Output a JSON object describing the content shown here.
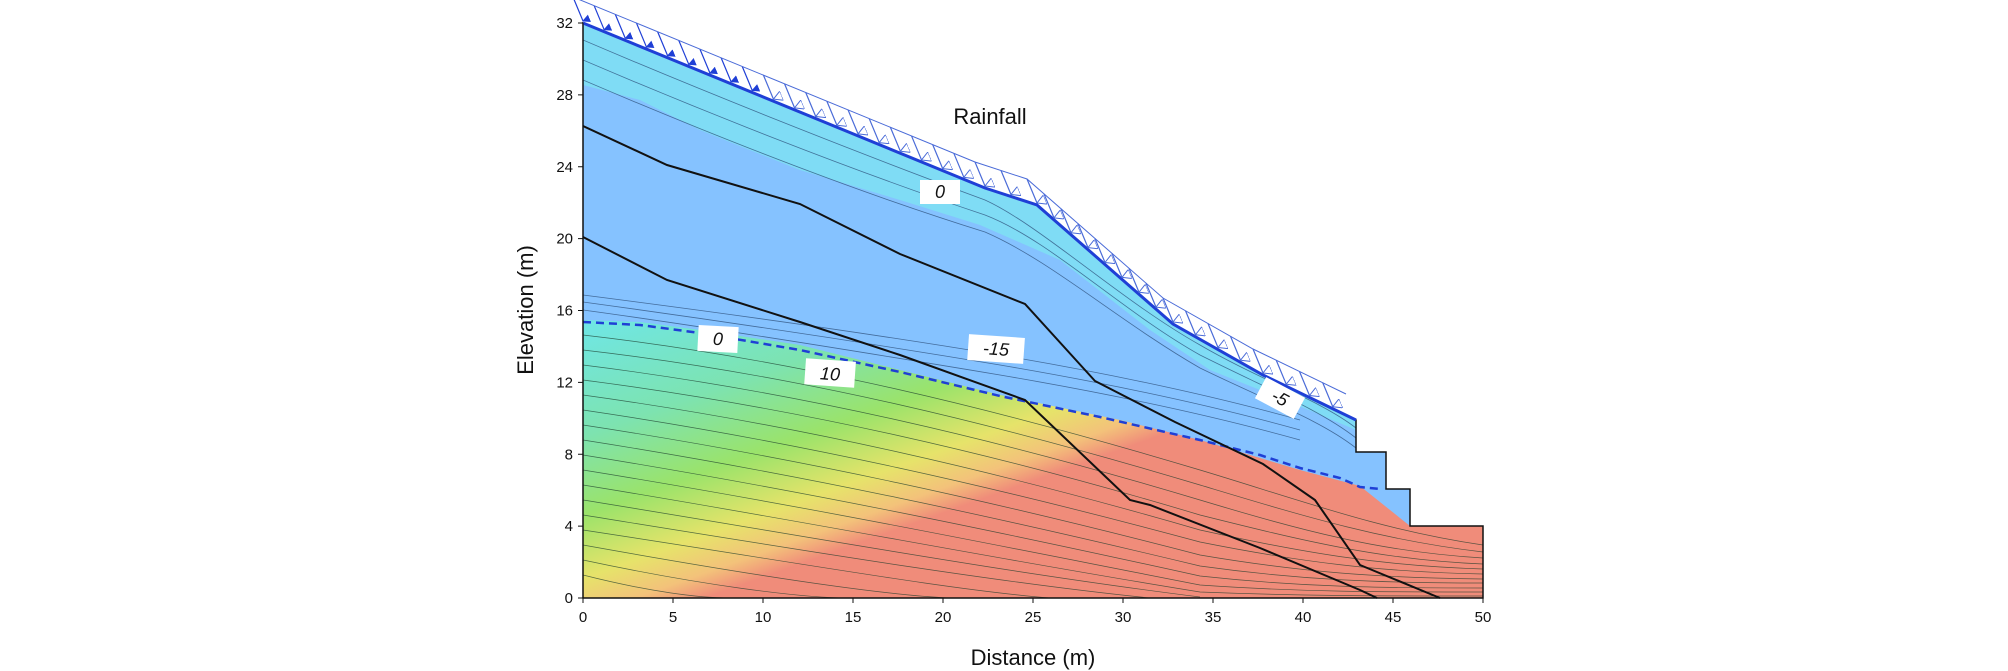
{
  "axes": {
    "x_label": "Distance (m)",
    "y_label": "Elevation (m)",
    "x_ticks": [
      "0",
      "5",
      "10",
      "15",
      "20",
      "25",
      "30",
      "35",
      "40",
      "45",
      "50"
    ],
    "y_ticks": [
      "0",
      "4",
      "8",
      "12",
      "16",
      "20",
      "24",
      "28",
      "32"
    ],
    "x_range": [
      0,
      50
    ],
    "y_range": [
      0,
      32
    ]
  },
  "annotations": {
    "rainfall": "Rainfall",
    "contour_0_top": "0",
    "contour_minus5": "-5",
    "contour_minus15": "-15",
    "contour_0_water_table": "0",
    "contour_10": "10"
  },
  "colors": {
    "unsaturated_blue": "#85c2ff",
    "near_surface_cyan": "#7fdcf5",
    "saturated_cyan": "#6fe6e4",
    "mid_green": "#8fe37a",
    "deep_yellow": "#f3e27a",
    "deep_red": "#f08c7a",
    "water_table": "#1f3fd6",
    "rain_arrow": "#1f3fd6"
  }
}
